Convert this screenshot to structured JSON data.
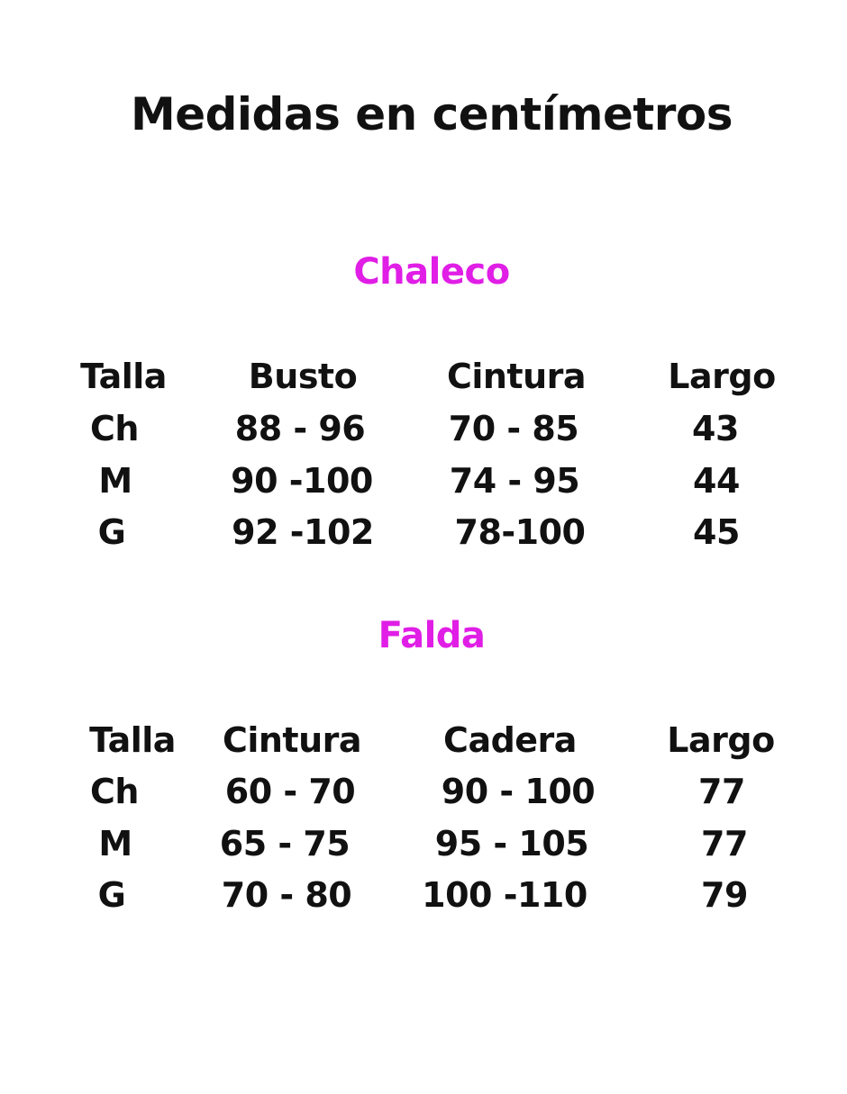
{
  "title": "Medidas en centímetros",
  "accent_color": "#e01ee6",
  "tables": [
    {
      "name": "Chaleco",
      "headers": [
        "Talla",
        "Busto",
        "Cintura",
        "Largo"
      ],
      "rows": [
        [
          "Ch",
          "88 - 96",
          "70 - 85",
          "43"
        ],
        [
          "M",
          "90 -100",
          "74 - 95",
          "44"
        ],
        [
          "G",
          "92 -102",
          "78-100",
          "45"
        ]
      ]
    },
    {
      "name": "Falda",
      "headers": [
        "Talla",
        "Cintura",
        "Cadera",
        "Largo"
      ],
      "rows": [
        [
          "Ch",
          "60 - 70",
          "90 - 100",
          "77"
        ],
        [
          "M",
          "65 - 75",
          "95 - 105",
          "77"
        ],
        [
          "G",
          "70 - 80",
          "100 -110",
          "79"
        ]
      ]
    }
  ]
}
